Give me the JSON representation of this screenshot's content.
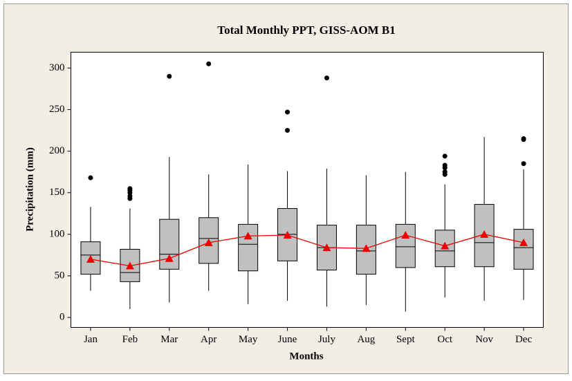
{
  "chart_data": {
    "type": "box",
    "title": "Total Monthly PPT, GISS-AOM B1",
    "x_label": "Months",
    "y_label": "Precipitation (mm)",
    "categories": [
      "Jan",
      "Feb",
      "Mar",
      "Apr",
      "May",
      "June",
      "July",
      "Aug",
      "Sept",
      "Oct",
      "Nov",
      "Dec"
    ],
    "box_color": "#c0c0c0",
    "mean_color": "#ee0000",
    "outlier_color": "#000000",
    "boxes": [
      {
        "min": 32,
        "q1": 52,
        "median": 75,
        "q3": 91,
        "max": 133,
        "outliers": [
          168
        ]
      },
      {
        "min": 10,
        "q1": 43,
        "median": 54,
        "q3": 82,
        "max": 131,
        "outliers": [
          143,
          146,
          150,
          153,
          155
        ]
      },
      {
        "min": 18,
        "q1": 58,
        "median": 76,
        "q3": 118,
        "max": 193,
        "outliers": [
          290
        ]
      },
      {
        "min": 32,
        "q1": 65,
        "median": 95,
        "q3": 120,
        "max": 172,
        "outliers": [
          305
        ]
      },
      {
        "min": 16,
        "q1": 56,
        "median": 88,
        "q3": 112,
        "max": 184,
        "outliers": []
      },
      {
        "min": 20,
        "q1": 68,
        "median": 100,
        "q3": 131,
        "max": 176,
        "outliers": [
          225,
          247
        ]
      },
      {
        "min": 13,
        "q1": 57,
        "median": 84,
        "q3": 111,
        "max": 179,
        "outliers": [
          288
        ]
      },
      {
        "min": 15,
        "q1": 52,
        "median": 80,
        "q3": 111,
        "max": 171,
        "outliers": []
      },
      {
        "min": 7,
        "q1": 60,
        "median": 85,
        "q3": 112,
        "max": 175,
        "outliers": []
      },
      {
        "min": 24,
        "q1": 61,
        "median": 80,
        "q3": 105,
        "max": 160,
        "outliers": [
          172,
          175,
          180,
          183,
          194
        ]
      },
      {
        "min": 20,
        "q1": 61,
        "median": 90,
        "q3": 136,
        "max": 217,
        "outliers": []
      },
      {
        "min": 21,
        "q1": 58,
        "median": 84,
        "q3": 106,
        "max": 178,
        "outliers": [
          185,
          214,
          215
        ]
      }
    ],
    "means": [
      70,
      62,
      71,
      90,
      98,
      99,
      84,
      83,
      99,
      86,
      100,
      90
    ],
    "ylim": [
      -12,
      319
    ],
    "yticks": [
      0,
      50,
      100,
      150,
      200,
      250,
      300
    ]
  }
}
